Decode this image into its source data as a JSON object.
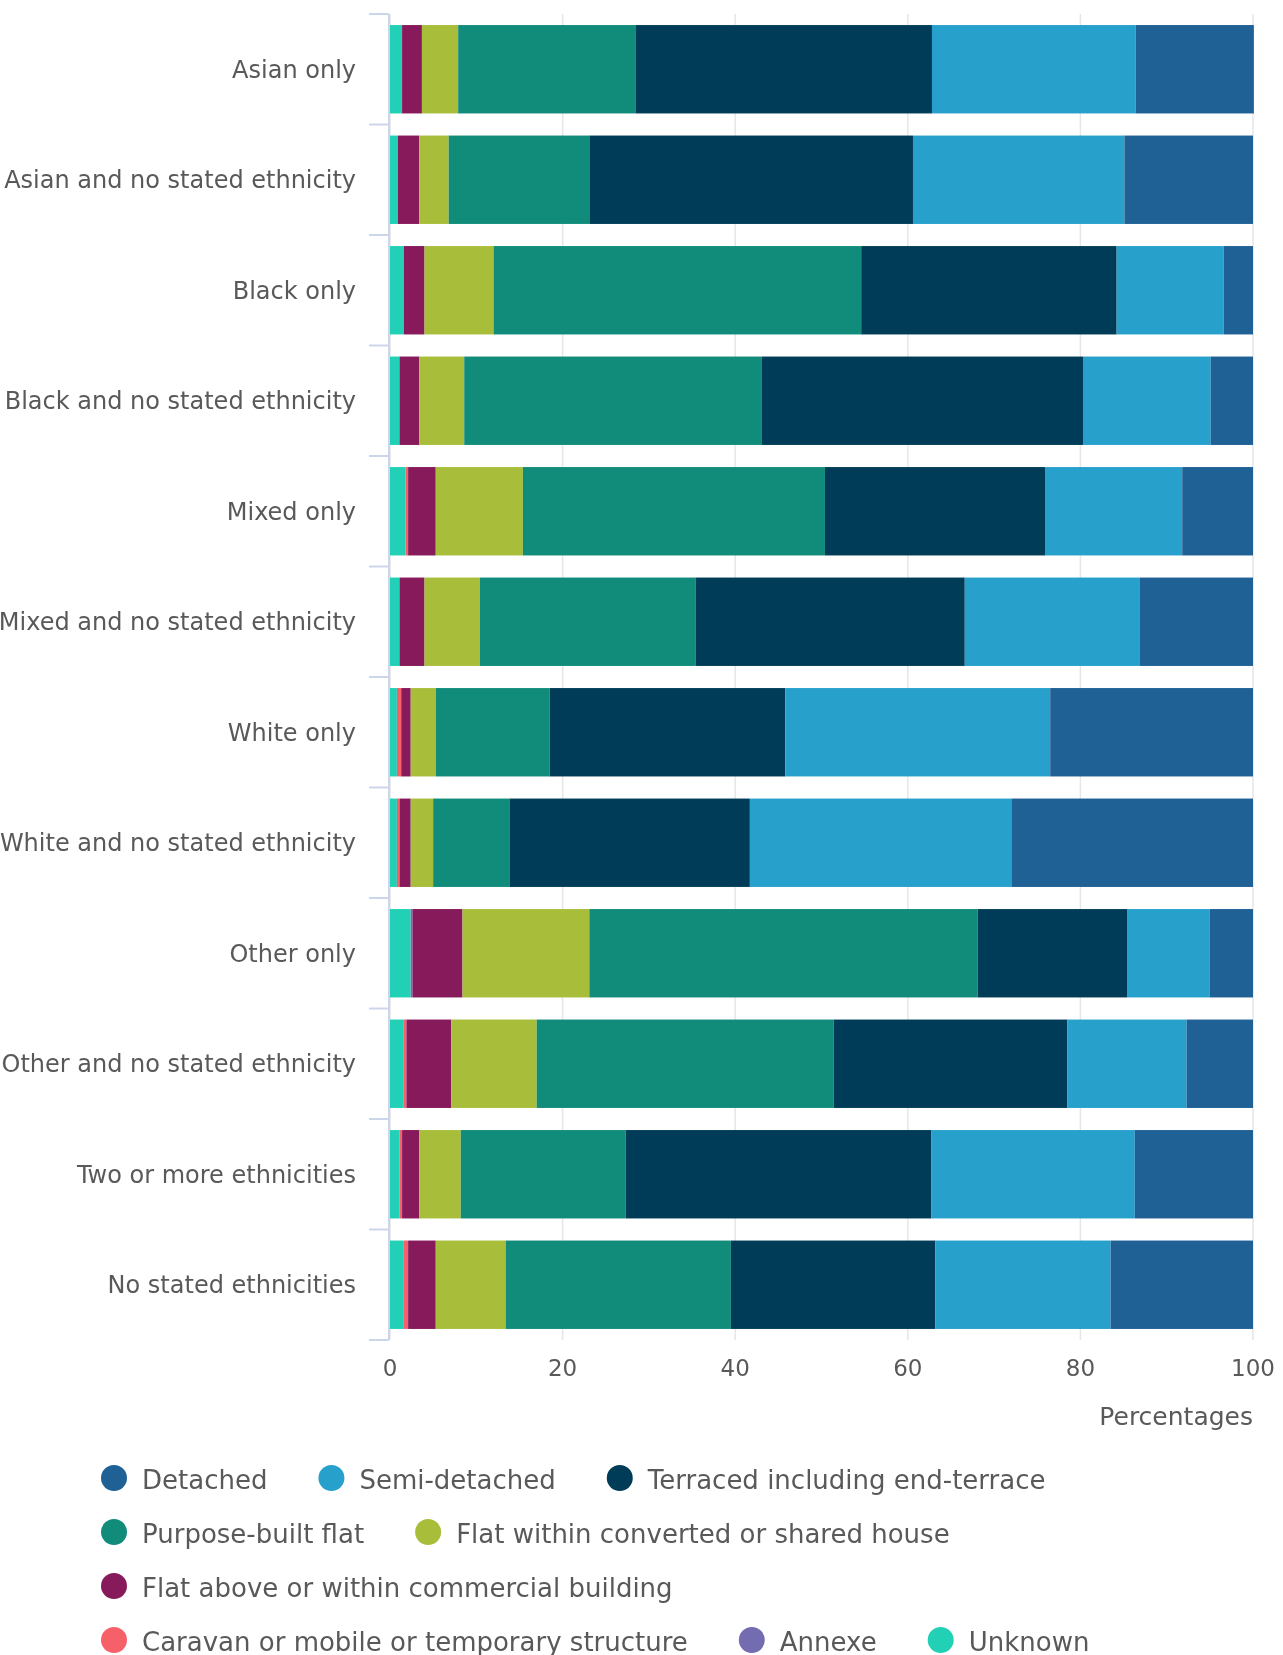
{
  "chart_data": {
    "type": "bar",
    "orientation": "horizontal",
    "stacked": true,
    "xlabel": "Percentages",
    "categories": [
      "Asian only",
      "Asian and no stated ethnicity",
      "Black only",
      "Black and no stated ethnicity",
      "Mixed only",
      "Mixed and no stated ethnicity",
      "White only",
      "White and no stated ethnicity",
      "Other only",
      "Other and no stated ethnicity",
      "Two or more ethnicities",
      "No stated ethnicities"
    ],
    "series": [
      {
        "name": "Unknown",
        "color": "#22d0b6",
        "values": [
          1.4,
          0.9,
          1.6,
          1.1,
          1.8,
          1.1,
          0.8,
          0.8,
          2.4,
          1.6,
          1.1,
          1.6
        ]
      },
      {
        "name": "Annexe",
        "color": "#746cb1",
        "values": [
          0,
          0,
          0,
          0,
          0,
          0,
          0,
          0,
          0.2,
          0,
          0,
          0
        ]
      },
      {
        "name": "Caravan or mobile or temporary structure",
        "color": "#f66068",
        "values": [
          0,
          0,
          0,
          0,
          0.3,
          0,
          0.5,
          0.3,
          0,
          0.3,
          0.3,
          0.5
        ]
      },
      {
        "name": "Flat above or within commercial building",
        "color": "#871a5b",
        "values": [
          2.3,
          2.5,
          2.4,
          2.3,
          3.2,
          2.9,
          1.1,
          1.3,
          5.8,
          5.2,
          2.0,
          3.2
        ]
      },
      {
        "name": "Flat within converted or shared house",
        "color": "#a8bd3a",
        "values": [
          4.2,
          3.4,
          8.0,
          5.2,
          10.1,
          6.4,
          2.9,
          2.6,
          14.7,
          9.9,
          4.8,
          8.1
        ]
      },
      {
        "name": "Purpose-built flat",
        "color": "#118c7b",
        "values": [
          20.6,
          16.3,
          42.6,
          34.5,
          35.0,
          25.0,
          13.2,
          8.9,
          45.0,
          34.4,
          19.1,
          26.1
        ]
      },
      {
        "name": "Terraced including end-terrace",
        "color": "#003c57",
        "values": [
          34.3,
          37.5,
          29.6,
          37.2,
          25.5,
          31.2,
          27.3,
          27.8,
          17.3,
          27.1,
          35.4,
          23.7
        ]
      },
      {
        "name": "Semi-detached",
        "color": "#27a0cc",
        "values": [
          23.6,
          24.5,
          12.4,
          14.8,
          15.9,
          20.3,
          30.7,
          30.3,
          9.6,
          13.8,
          23.6,
          20.3
        ]
      },
      {
        "name": "Detached",
        "color": "#1f6095",
        "values": [
          13.7,
          14.9,
          3.4,
          4.9,
          8.2,
          13.1,
          23.5,
          28.0,
          5.0,
          7.7,
          13.7,
          16.5
        ]
      }
    ],
    "xlim": [
      0,
      100
    ],
    "xticks": [
      0,
      20,
      40,
      60,
      80,
      100
    ],
    "grid": "x",
    "legend": "bottom"
  }
}
